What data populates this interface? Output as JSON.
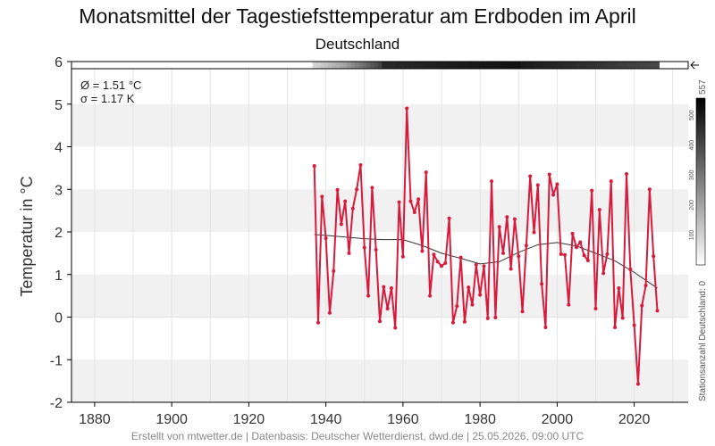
{
  "page": {
    "title": "Monatsmittel der Tagestiefsttemperatur am Erdboden im April",
    "subtitle": "Deutschland",
    "footer": "Erstellt von mtwetter.de | Datenbasis: Deutscher Wetterdienst, dwd.de | 25.05.2026, 09:00 UTC"
  },
  "chart_data": {
    "type": "line",
    "title": "Monatsmittel der Tagestiefsttemperatur am Erdboden im April",
    "subtitle": "Deutschland",
    "xlabel": "",
    "ylabel": "Temperatur in °C",
    "xlim": [
      1874,
      2034
    ],
    "ylim": [
      -2,
      6
    ],
    "x_ticks": [
      "1880",
      "1900",
      "1920",
      "1940",
      "1960",
      "1980",
      "2000",
      "2020"
    ],
    "y_ticks": [
      "6",
      "5",
      "4",
      "3",
      "2",
      "1",
      "0",
      "-1",
      "-2"
    ],
    "grid": true,
    "stats": {
      "mean": "Ø = 1.51 °C",
      "sd": "σ = 1.17 K"
    },
    "series": [
      {
        "color": "#d81b3c",
        "x": [
          1937,
          1938,
          1939,
          1940,
          1941,
          1942,
          1943,
          1944,
          1945,
          1946,
          1947,
          1948,
          1949,
          1950,
          1951,
          1952,
          1953,
          1954,
          1955,
          1956,
          1957,
          1958,
          1959,
          1960,
          1961,
          1962,
          1963,
          1964,
          1965,
          1966,
          1967,
          1968,
          1969,
          1970,
          1971,
          1972,
          1973,
          1974,
          1975,
          1976,
          1977,
          1978,
          1979,
          1980,
          1981,
          1982,
          1983,
          1984,
          1985,
          1986,
          1987,
          1988,
          1989,
          1990,
          1991,
          1992,
          1993,
          1994,
          1995,
          1996,
          1997,
          1998,
          1999,
          2000,
          2001,
          2002,
          2003,
          2004,
          2005,
          2006,
          2007,
          2008,
          2009,
          2010,
          2011,
          2012,
          2013,
          2014,
          2015,
          2016,
          2017,
          2018,
          2019,
          2020,
          2021,
          2022,
          2023,
          2024,
          2025,
          2026
        ],
        "values": [
          3.55,
          -0.13,
          2.83,
          1.85,
          0.1,
          1.08,
          2.99,
          2.18,
          2.72,
          1.5,
          2.55,
          3.0,
          3.57,
          1.63,
          0.5,
          3.04,
          1.58,
          -0.1,
          0.71,
          0.2,
          0.68,
          -0.25,
          2.7,
          1.42,
          4.9,
          2.72,
          2.46,
          2.77,
          1.55,
          3.4,
          0.5,
          1.47,
          1.3,
          1.2,
          1.27,
          2.32,
          -0.13,
          0.26,
          1.4,
          -0.11,
          0.7,
          0.29,
          1.23,
          0.52,
          1.2,
          -0.03,
          3.19,
          -0.01,
          2.12,
          1.5,
          2.35,
          1.13,
          2.3,
          1.43,
          0.13,
          1.68,
          3.31,
          1.99,
          3.1,
          0.78,
          -0.24,
          3.35,
          2.87,
          3.12,
          1.48,
          1.46,
          0.29,
          1.96,
          1.64,
          1.76,
          1.45,
          1.33,
          2.97,
          0.2,
          2.52,
          1.03,
          1.48,
          3.19,
          -0.24,
          0.68,
          -0.02,
          3.36,
          1.12,
          -0.19,
          -1.57,
          0.27,
          0.74,
          3.0,
          1.43,
          0.15
        ]
      },
      {
        "color": "#333333",
        "x": [
          1937,
          1940,
          1945,
          1950,
          1955,
          1960,
          1965,
          1970,
          1975,
          1980,
          1985,
          1990,
          1995,
          2000,
          2005,
          2010,
          2015,
          2020,
          2026
        ],
        "values": [
          1.94,
          1.92,
          1.88,
          1.84,
          1.82,
          1.82,
          1.68,
          1.5,
          1.38,
          1.25,
          1.3,
          1.52,
          1.7,
          1.75,
          1.67,
          1.5,
          1.32,
          1.05,
          0.68
        ]
      }
    ],
    "station_count": {
      "label": "Stationsanzahl Deutschland: 0",
      "max_label": "557",
      "scale_ticks": [
        "500",
        "400",
        "300",
        "200",
        "100"
      ],
      "scale_values": [
        500,
        400,
        300,
        200,
        100
      ],
      "scale_max": 557
    }
  }
}
